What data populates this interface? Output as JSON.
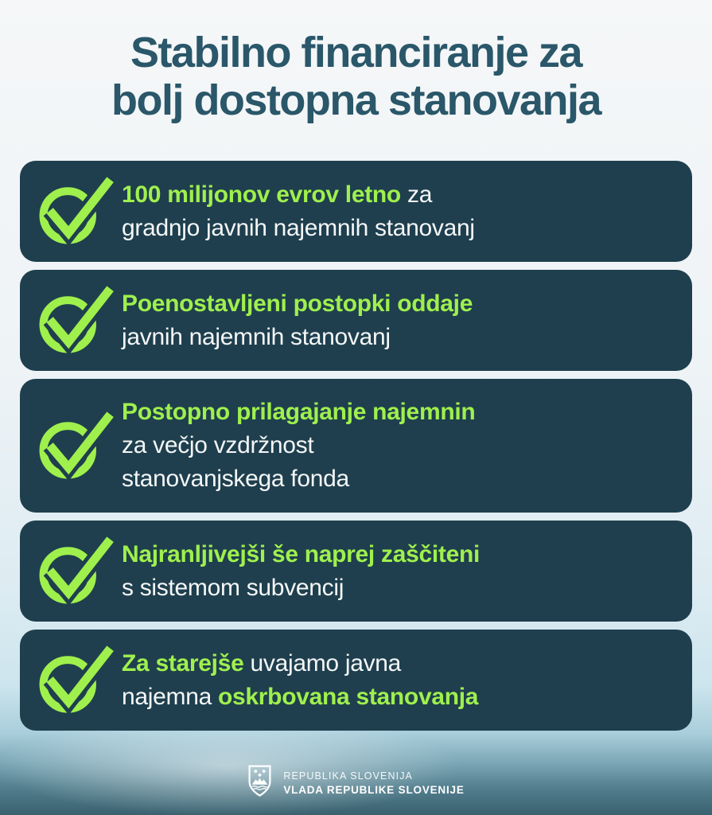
{
  "title": {
    "line1": "Stabilno financiranje za",
    "line2": "bolj dostopna stanovanja"
  },
  "cards": [
    {
      "lines": [
        [
          {
            "t": "100 milijonov evrov letno",
            "g": true
          },
          {
            "t": " za",
            "g": false
          }
        ],
        [
          {
            "t": "gradnjo javnih najemnih stanovanj",
            "g": false
          }
        ]
      ]
    },
    {
      "lines": [
        [
          {
            "t": "Poenostavljeni postopki oddaje",
            "g": true
          }
        ],
        [
          {
            "t": "javnih najemnih stanovanj",
            "g": false
          }
        ]
      ]
    },
    {
      "lines": [
        [
          {
            "t": "Postopno prilagajanje najemnin",
            "g": true
          }
        ],
        [
          {
            "t": "za večjo vzdržnost",
            "g": false
          }
        ],
        [
          {
            "t": "stanovanjskega fonda",
            "g": false
          }
        ]
      ]
    },
    {
      "lines": [
        [
          {
            "t": "Najranljivejši še naprej zaščiteni",
            "g": true
          }
        ],
        [
          {
            "t": "s sistemom subvencij",
            "g": false
          }
        ]
      ]
    },
    {
      "lines": [
        [
          {
            "t": "Za starejše",
            "g": true
          },
          {
            "t": " uvajamo javna",
            "g": false
          }
        ],
        [
          {
            "t": "najemna ",
            "g": false
          },
          {
            "t": "oskrbovana stanovanja",
            "g": true
          }
        ]
      ]
    }
  ],
  "footer": {
    "line1": "REPUBLIKA SLOVENIJA",
    "line2": "VLADA REPUBLIKE SLOVENIJE"
  },
  "icons": {
    "card_icon": "check-circle-icon",
    "footer_icon": "slovenia-coat-of-arms-icon"
  },
  "colors": {
    "accent_green": "#9FF04D",
    "card_background": "#1F3F4E",
    "title_text": "#2A5769",
    "body_text": "#F4F7F7",
    "background_top": "#F3F6F7",
    "background_bottom": "#3A616F"
  }
}
